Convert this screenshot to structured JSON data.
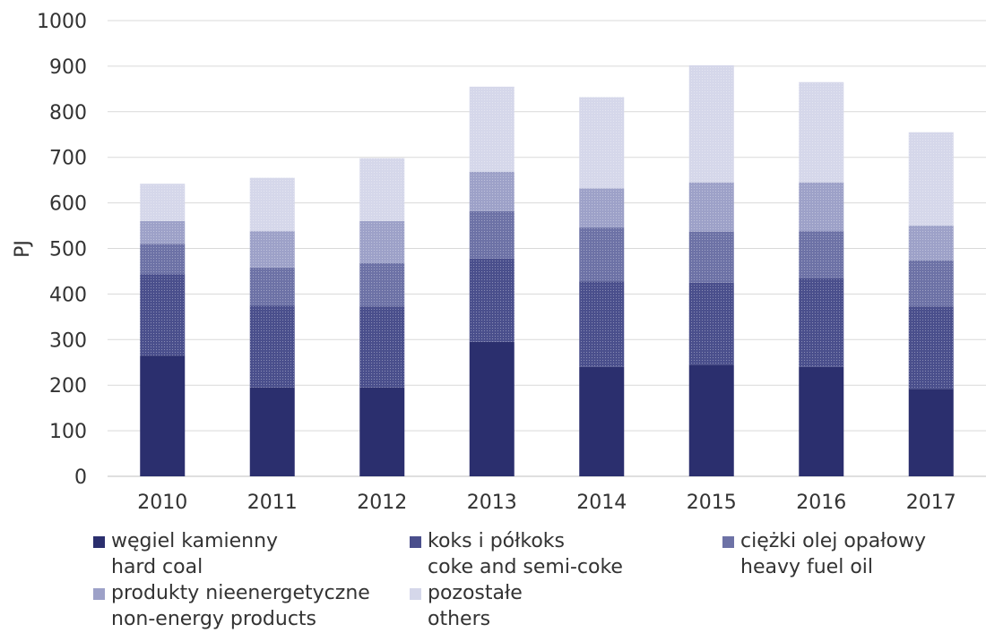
{
  "chart_data": {
    "type": "bar",
    "stacked": true,
    "categories": [
      "2010",
      "2011",
      "2012",
      "2013",
      "2014",
      "2015",
      "2016",
      "2017"
    ],
    "ylabel": "PJ",
    "xlabel": "",
    "ylim": [
      0,
      1000
    ],
    "yticks": [
      0,
      100,
      200,
      300,
      400,
      500,
      600,
      700,
      800,
      900,
      1000
    ],
    "grid": true,
    "legend_position": "bottom",
    "series": [
      {
        "name": "węgiel kamienny",
        "name_en": "hard coal",
        "color": "#2b2f6e",
        "values": [
          265,
          195,
          195,
          295,
          240,
          245,
          240,
          192
        ]
      },
      {
        "name": "koks i półkoks",
        "name_en": "coke and semi-coke",
        "color": "#4a4f8c",
        "values": [
          178,
          180,
          178,
          183,
          188,
          180,
          195,
          181
        ]
      },
      {
        "name": "ciężki olej opałowy",
        "name_en": "heavy fuel oil",
        "color": "#6d72a6",
        "values": [
          67,
          83,
          95,
          104,
          118,
          112,
          103,
          101
        ]
      },
      {
        "name": "produkty nieenergetyczne",
        "name_en": "non-energy products",
        "color": "#9da1c8",
        "values": [
          50,
          80,
          92,
          86,
          86,
          108,
          107,
          76
        ]
      },
      {
        "name": "pozostałe",
        "name_en": "others",
        "color": "#d5d7ea",
        "values": [
          82,
          117,
          138,
          187,
          200,
          257,
          220,
          205
        ]
      }
    ]
  }
}
